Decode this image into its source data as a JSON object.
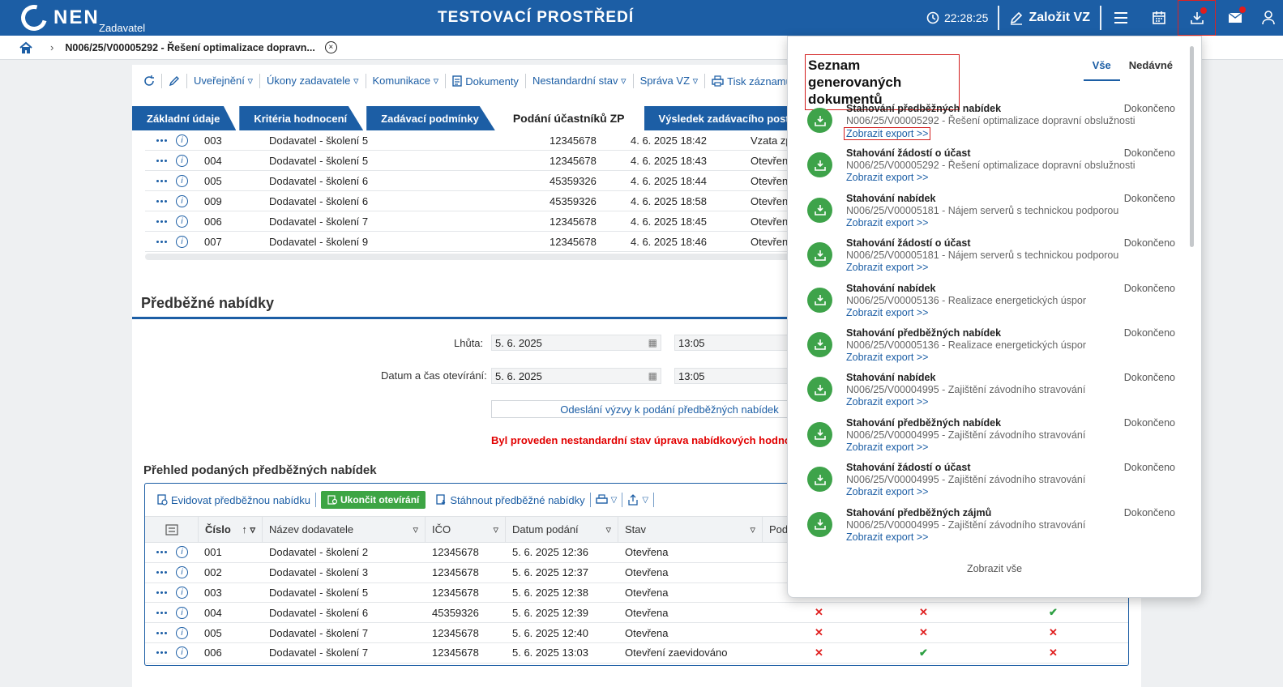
{
  "topbar": {
    "logo": "NEN",
    "logo_sub": "Zadavatel",
    "env_title": "TESTOVACÍ PROSTŘEDÍ",
    "time": "22:28:25",
    "create_label": "Založit VZ",
    "icons": [
      "menu-icon",
      "calendar-icon",
      "download-icon",
      "mail-icon",
      "user-icon"
    ]
  },
  "breadcrumb": {
    "text": "N006/25/V00005292 - Řešení optimalizace dopravn...",
    "close": "×"
  },
  "toolbar": {
    "items": [
      "Uveřejnění ▿",
      "Úkony zadavatele ▿",
      "Komunikace ▿",
      "Dokumenty",
      "Nestandardní stav ▿",
      "Správa VZ ▿",
      "Tisk záznamu"
    ]
  },
  "tabs": [
    "Základní údaje",
    "Kritéria hodnocení",
    "Zadávací podmínky",
    "Podání účastníků ZP",
    "Výsledek zadávacího postupu"
  ],
  "upper_rows": [
    [
      "003",
      "Dodavatel - školení 5",
      "12345678",
      "4. 6. 2025 18:42",
      "Vzata zp"
    ],
    [
      "004",
      "Dodavatel - školení 5",
      "12345678",
      "4. 6. 2025 18:43",
      "Otevřen"
    ],
    [
      "005",
      "Dodavatel - školení 6",
      "45359326",
      "4. 6. 2025 18:44",
      "Otevřen"
    ],
    [
      "009",
      "Dodavatel - školení 6",
      "45359326",
      "4. 6. 2025 18:58",
      "Otevřen"
    ],
    [
      "006",
      "Dodavatel - školení 7",
      "12345678",
      "4. 6. 2025 18:45",
      "Otevřen"
    ],
    [
      "007",
      "Dodavatel - školení 9",
      "12345678",
      "4. 6. 2025 18:46",
      "Otevřen"
    ]
  ],
  "section": {
    "title": "Předběžné nabídky",
    "lhuta_label": "Lhůta:",
    "lhuta_date": "5. 6. 2025",
    "lhuta_time": "13:05",
    "otevirani_label": "Datum a čas otevírání:",
    "otevirani_date": "5. 6. 2025",
    "otevirani_time": "13:05",
    "send_button": "Odeslání výzvy k podání předběžných nabídek",
    "warning": "Byl proveden nestandardní stav úprava nabídkových hodnot podá"
  },
  "lower": {
    "title": "Přehled podaných předběžných nabídek",
    "tool_evidovat": "Evidovat předběžnou nabídku",
    "tool_ukoncit": "Ukončit otevírání",
    "tool_stahnout": "Stáhnout předběžné nabídky",
    "headers": [
      "Číslo",
      "Název dodavatele",
      "IČO",
      "Datum podání",
      "Stav",
      "Pod"
    ],
    "rows": [
      [
        "001",
        "Dodavatel - školení 2",
        "12345678",
        "5. 6. 2025 12:36",
        "Otevřena",
        "",
        "",
        ""
      ],
      [
        "002",
        "Dodavatel - školení 3",
        "12345678",
        "5. 6. 2025 12:37",
        "Otevřena",
        "",
        "",
        ""
      ],
      [
        "003",
        "Dodavatel - školení 5",
        "12345678",
        "5. 6. 2025 12:38",
        "Otevřena",
        "",
        "",
        ""
      ],
      [
        "004",
        "Dodavatel - školení 6",
        "45359326",
        "5. 6. 2025 12:39",
        "Otevřena",
        "✕",
        "✕",
        "✔"
      ],
      [
        "005",
        "Dodavatel - školení 7",
        "12345678",
        "5. 6. 2025 12:40",
        "Otevřena",
        "✕",
        "✕",
        "✕"
      ],
      [
        "006",
        "Dodavatel - školení 7",
        "12345678",
        "5. 6. 2025 13:03",
        "Otevření zaevidováno",
        "✕",
        "✔",
        "✕"
      ]
    ]
  },
  "panel": {
    "title": "Seznam generovaných dokumentů",
    "tab_all": "Vše",
    "tab_recent": "Nedávné",
    "link_label": "Zobrazit export >>",
    "items": [
      {
        "title": "Stahování předběžných nabídek",
        "status": "Dokončeno",
        "sub": "N006/25/V00005292 - Řešení optimalizace dopravní obslužnosti"
      },
      {
        "title": "Stahování žádostí o účast",
        "status": "Dokončeno",
        "sub": "N006/25/V00005292 - Řešení optimalizace dopravní obslužnosti"
      },
      {
        "title": "Stahování nabídek",
        "status": "Dokončeno",
        "sub": "N006/25/V00005181 - Nájem serverů s technickou podporou"
      },
      {
        "title": "Stahování žádostí o účast",
        "status": "Dokončeno",
        "sub": "N006/25/V00005181 - Nájem serverů s technickou podporou"
      },
      {
        "title": "Stahování nabídek",
        "status": "Dokončeno",
        "sub": "N006/25/V00005136 - Realizace energetických úspor"
      },
      {
        "title": "Stahování předběžných nabídek",
        "status": "Dokončeno",
        "sub": "N006/25/V00005136 - Realizace energetických úspor"
      },
      {
        "title": "Stahování nabídek",
        "status": "Dokončeno",
        "sub": "N006/25/V00004995 - Zajištění závodního stravování"
      },
      {
        "title": "Stahování předběžných nabídek",
        "status": "Dokončeno",
        "sub": "N006/25/V00004995 - Zajištění závodního stravování"
      },
      {
        "title": "Stahování žádostí o účast",
        "status": "Dokončeno",
        "sub": "N006/25/V00004995 - Zajištění závodního stravování"
      },
      {
        "title": "Stahování předběžných zájmů",
        "status": "Dokončeno",
        "sub": "N006/25/V00004995 - Zajištění závodního stravování"
      }
    ],
    "show_all": "Zobrazit vše"
  }
}
